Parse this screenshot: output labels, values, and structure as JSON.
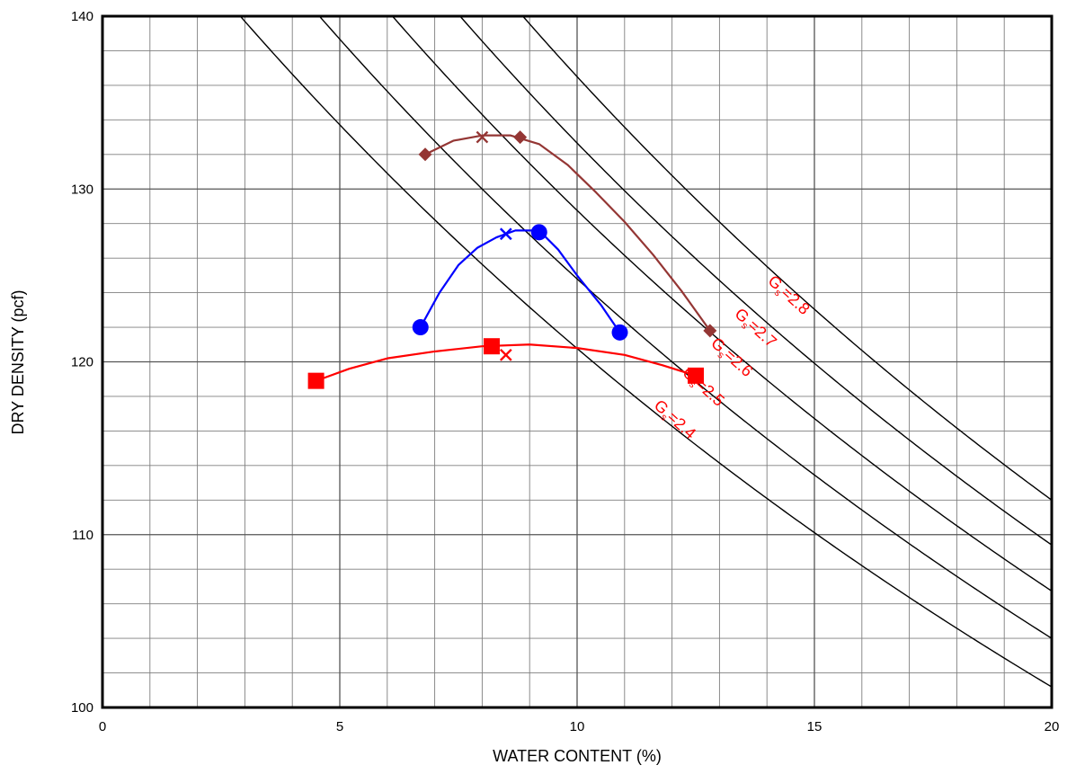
{
  "chart_data": {
    "type": "scatter",
    "xlabel": "WATER CONTENT (%)",
    "ylabel": "DRY DENSITY (pcf)",
    "xlim": [
      0,
      20
    ],
    "ylim": [
      100,
      140
    ],
    "x_ticks": [
      0,
      5,
      10,
      15,
      20
    ],
    "y_ticks": [
      100,
      110,
      120,
      130,
      140
    ],
    "x_tick_labels": [
      "0",
      "5",
      "10",
      "15",
      "20"
    ],
    "y_tick_labels": [
      "100",
      "110",
      "120",
      "130",
      "140"
    ],
    "grid": true,
    "zav_curves": [
      {
        "gs": 2.4,
        "label_main": "G",
        "label_sub": "s",
        "label_rest": "=2.4"
      },
      {
        "gs": 2.5,
        "label_main": "G",
        "label_sub": "s",
        "label_rest": "=2.5"
      },
      {
        "gs": 2.6,
        "label_main": "G",
        "label_sub": "s",
        "label_rest": "=2.6"
      },
      {
        "gs": 2.7,
        "label_main": "G",
        "label_sub": "s",
        "label_rest": "=2.7"
      },
      {
        "gs": 2.8,
        "label_main": "G",
        "label_sub": "s",
        "label_rest": "=2.8"
      }
    ],
    "zav_color": "#000000",
    "zav_label_color": "#ff0000",
    "series": [
      {
        "color": "#943634",
        "marker": "diamond",
        "points": [
          {
            "x": 6.8,
            "y": 132.0
          },
          {
            "x": 8.8,
            "y": 133.0
          },
          {
            "x": 12.8,
            "y": 121.8
          }
        ],
        "curve": [
          [
            6.8,
            132.0
          ],
          [
            7.4,
            132.8
          ],
          [
            8.0,
            133.1
          ],
          [
            8.6,
            133.1
          ],
          [
            9.2,
            132.6
          ],
          [
            9.8,
            131.4
          ],
          [
            10.4,
            129.8
          ],
          [
            11.0,
            128.1
          ],
          [
            11.6,
            126.2
          ],
          [
            12.2,
            124.1
          ],
          [
            12.8,
            121.8
          ]
        ],
        "optimum": {
          "x": 8.0,
          "y": 133.0
        }
      },
      {
        "color": "#0000ff",
        "marker": "circle",
        "points": [
          {
            "x": 6.7,
            "y": 122.0
          },
          {
            "x": 9.2,
            "y": 127.5
          },
          {
            "x": 10.9,
            "y": 121.7
          }
        ],
        "curve": [
          [
            6.7,
            122.0
          ],
          [
            7.1,
            124.0
          ],
          [
            7.5,
            125.6
          ],
          [
            7.9,
            126.6
          ],
          [
            8.3,
            127.2
          ],
          [
            8.7,
            127.6
          ],
          [
            9.2,
            127.6
          ],
          [
            9.6,
            126.5
          ],
          [
            10.0,
            125.0
          ],
          [
            10.5,
            123.3
          ],
          [
            10.9,
            121.7
          ]
        ],
        "optimum": {
          "x": 8.5,
          "y": 127.4
        }
      },
      {
        "color": "#ff0000",
        "marker": "square",
        "points": [
          {
            "x": 4.5,
            "y": 118.9
          },
          {
            "x": 8.2,
            "y": 120.9
          },
          {
            "x": 12.5,
            "y": 119.2
          }
        ],
        "curve": [
          [
            4.5,
            118.9
          ],
          [
            5.2,
            119.6
          ],
          [
            6.0,
            120.2
          ],
          [
            7.0,
            120.6
          ],
          [
            8.0,
            120.9
          ],
          [
            9.0,
            121.0
          ],
          [
            10.0,
            120.8
          ],
          [
            11.0,
            120.4
          ],
          [
            11.8,
            119.8
          ],
          [
            12.5,
            119.2
          ]
        ],
        "optimum": {
          "x": 8.5,
          "y": 120.4
        }
      }
    ]
  }
}
